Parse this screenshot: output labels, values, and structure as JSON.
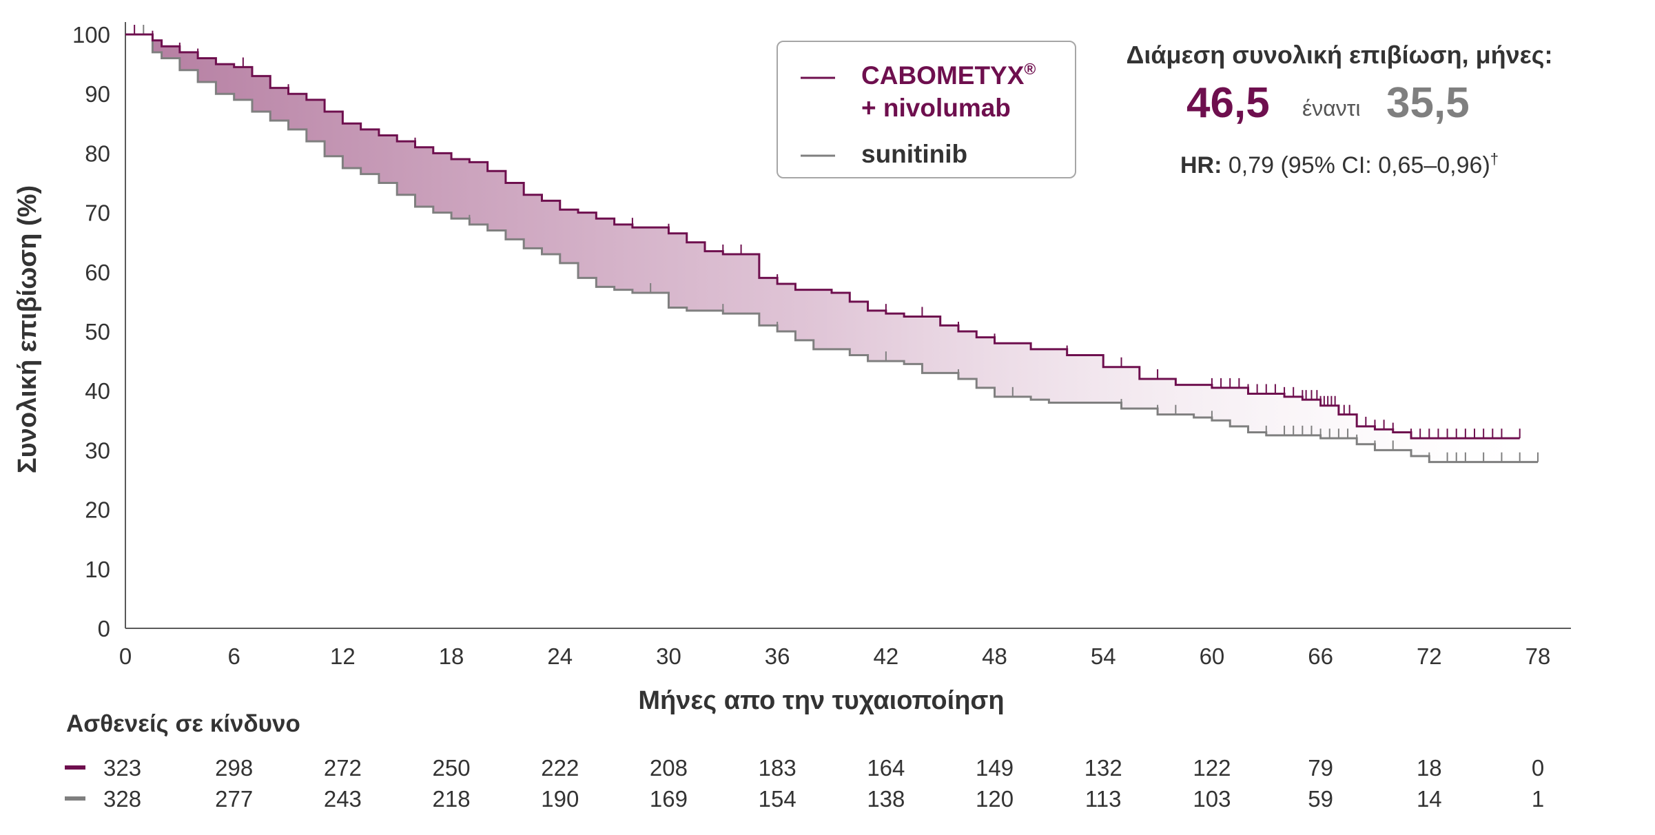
{
  "chart_data": {
    "type": "line",
    "subtype": "kaplan-meier",
    "xlabel": "Μήνες απο την τυχαιοποίηση",
    "ylabel": "Συνολική επιβίωση (%)",
    "xlim": [
      0,
      78
    ],
    "ylim": [
      0,
      100
    ],
    "xticks": [
      "0",
      "6",
      "12",
      "18",
      "24",
      "30",
      "36",
      "42",
      "48",
      "54",
      "60",
      "66",
      "72",
      "78"
    ],
    "yticks": [
      "0",
      "10",
      "20",
      "30",
      "40",
      "50",
      "60",
      "70",
      "80",
      "90",
      "100"
    ],
    "grid": false,
    "legend_position": "top-center",
    "series": [
      {
        "name_line1": "CABOMETYX",
        "name_sup": "®",
        "name_line2": "+ nivolumab",
        "color": "#6e0f4e",
        "points": [
          [
            0,
            100
          ],
          [
            1.5,
            99
          ],
          [
            2,
            98
          ],
          [
            3,
            97
          ],
          [
            4,
            96
          ],
          [
            5,
            95
          ],
          [
            6,
            94.5
          ],
          [
            7,
            93
          ],
          [
            8,
            91
          ],
          [
            9,
            90
          ],
          [
            10,
            89
          ],
          [
            11,
            87
          ],
          [
            12,
            85
          ],
          [
            13,
            84
          ],
          [
            14,
            83
          ],
          [
            15,
            82
          ],
          [
            16,
            81
          ],
          [
            17,
            80
          ],
          [
            18,
            79
          ],
          [
            19,
            78.5
          ],
          [
            20,
            77
          ],
          [
            21,
            75
          ],
          [
            22,
            73
          ],
          [
            23,
            72
          ],
          [
            24,
            70.5
          ],
          [
            25,
            70
          ],
          [
            26,
            69
          ],
          [
            27,
            68
          ],
          [
            28,
            67.5
          ],
          [
            30,
            66.5
          ],
          [
            31,
            65
          ],
          [
            32,
            63.5
          ],
          [
            33,
            63
          ],
          [
            35,
            59
          ],
          [
            36,
            58
          ],
          [
            37,
            57
          ],
          [
            39,
            56.5
          ],
          [
            40,
            55
          ],
          [
            41,
            53.5
          ],
          [
            42,
            53
          ],
          [
            43,
            52.5
          ],
          [
            45,
            51
          ],
          [
            46,
            50
          ],
          [
            47,
            49
          ],
          [
            48,
            48
          ],
          [
            50,
            47
          ],
          [
            52,
            46
          ],
          [
            54,
            44
          ],
          [
            56,
            42
          ],
          [
            58,
            41
          ],
          [
            60,
            40.5
          ],
          [
            62,
            39.5
          ],
          [
            64,
            39
          ],
          [
            65,
            38.5
          ],
          [
            66,
            37.5
          ],
          [
            67,
            36
          ],
          [
            68,
            34
          ],
          [
            69,
            33.5
          ],
          [
            70,
            33
          ],
          [
            71,
            32
          ],
          [
            77,
            32
          ]
        ],
        "censor_x": [
          0.5,
          1.5,
          3,
          4,
          6.5,
          7,
          8,
          9,
          12,
          16,
          20,
          24,
          28,
          30,
          33,
          34,
          36,
          40,
          42,
          44,
          46,
          48,
          52,
          55,
          57,
          60,
          60.5,
          61,
          61.5,
          62,
          62.5,
          63,
          63.5,
          64,
          64.5,
          65,
          65.2,
          65.5,
          65.8,
          66,
          66.2,
          66.4,
          66.6,
          66.8,
          67,
          67.3,
          67.6,
          68,
          68.5,
          69,
          69.5,
          70,
          71,
          71.5,
          72,
          72.5,
          73,
          73.5,
          74,
          74.5,
          75,
          75.5,
          76,
          77
        ]
      },
      {
        "name": "sunitinib",
        "color": "#7f7f7f",
        "points": [
          [
            0,
            100
          ],
          [
            1.5,
            97
          ],
          [
            2,
            96
          ],
          [
            3,
            94
          ],
          [
            4,
            92
          ],
          [
            5,
            90
          ],
          [
            6,
            89
          ],
          [
            7,
            87
          ],
          [
            8,
            85.5
          ],
          [
            9,
            84
          ],
          [
            10,
            82
          ],
          [
            11,
            79.5
          ],
          [
            12,
            77.5
          ],
          [
            13,
            76.5
          ],
          [
            14,
            75
          ],
          [
            15,
            73
          ],
          [
            16,
            71
          ],
          [
            17,
            70
          ],
          [
            18,
            69
          ],
          [
            19,
            68
          ],
          [
            20,
            67
          ],
          [
            21,
            65.5
          ],
          [
            22,
            64
          ],
          [
            23,
            63
          ],
          [
            24,
            61.5
          ],
          [
            25,
            59
          ],
          [
            26,
            57.5
          ],
          [
            27,
            57
          ],
          [
            28,
            56.5
          ],
          [
            30,
            54
          ],
          [
            31,
            53.5
          ],
          [
            33,
            53
          ],
          [
            35,
            51
          ],
          [
            36,
            50
          ],
          [
            37,
            48.5
          ],
          [
            38,
            47
          ],
          [
            40,
            46
          ],
          [
            41,
            45
          ],
          [
            43,
            44.5
          ],
          [
            44,
            43
          ],
          [
            46,
            42
          ],
          [
            47,
            40.5
          ],
          [
            48,
            39
          ],
          [
            50,
            38.5
          ],
          [
            51,
            38
          ],
          [
            55,
            37
          ],
          [
            57,
            36
          ],
          [
            59,
            35.5
          ],
          [
            60,
            35
          ],
          [
            61,
            34
          ],
          [
            62,
            33
          ],
          [
            63,
            32.5
          ],
          [
            66,
            32
          ],
          [
            68,
            31
          ],
          [
            69,
            30
          ],
          [
            71,
            29
          ],
          [
            72,
            28
          ],
          [
            78,
            28
          ]
        ],
        "censor_x": [
          1,
          3,
          9,
          12,
          16,
          19,
          24,
          29,
          33,
          36,
          42,
          46,
          49,
          55,
          57,
          58,
          60,
          63,
          64,
          64.5,
          65,
          65.5,
          66,
          66.5,
          67,
          67.5,
          68,
          69,
          70,
          72,
          73,
          73.5,
          74,
          75,
          76,
          77,
          78
        ]
      }
    ],
    "annotation": {
      "title": "Διάμεση συνολική επιβίωση, μήνες:",
      "value_a": "46,5",
      "versus": "έναντι",
      "value_b": "35,5",
      "hr_label": "HR:",
      "hr_text": "0,79 (95% CI: 0,65–0,96)",
      "hr_sup": "†"
    },
    "risk_table": {
      "title": "Ασθενείς σε κίνδυνο",
      "rows": [
        {
          "color": "#6e0f4e",
          "values": [
            "323",
            "298",
            "272",
            "250",
            "222",
            "208",
            "183",
            "164",
            "149",
            "132",
            "122",
            "79",
            "18",
            "0"
          ]
        },
        {
          "color": "#7f7f7f",
          "values": [
            "328",
            "277",
            "243",
            "218",
            "190",
            "169",
            "154",
            "138",
            "120",
            "113",
            "103",
            "59",
            "14",
            "1"
          ]
        }
      ]
    }
  }
}
